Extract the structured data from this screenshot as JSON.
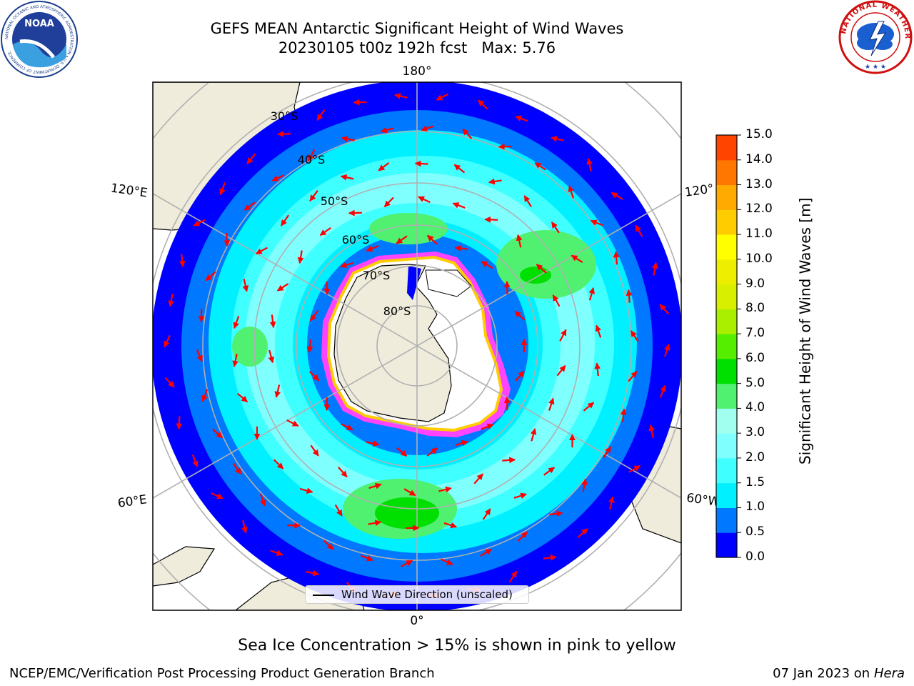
{
  "header": {
    "title_line1": "GEFS MEAN Antarctic Significant Height of Wind Waves",
    "title_line2": "20230105 t00z 192h fcst   Max: 5.76"
  },
  "logos": {
    "left": "NOAA",
    "left_ring_text": "NATIONAL OCEANIC AND ATMOSPHERIC ADMINISTRATION • U.S. DEPARTMENT OF COMMERCE",
    "right_ring_text": "NATIONAL WEATHER SERVICE"
  },
  "map": {
    "projection": "south-polar-stereographic",
    "longitude_labels": [
      "180°",
      "120°E",
      "120°",
      "60°E",
      "60°W",
      "0°"
    ],
    "latitude_labels": [
      "30°S",
      "40°S",
      "50°S",
      "60°S",
      "70°S",
      "80°S"
    ],
    "legend_label": "Wind Wave Direction (unscaled)",
    "colors": {
      "land": "#efecdc",
      "open_ocean": "#0000ff",
      "sea_ice": "#ff44ff",
      "arrows": "#ff0000",
      "grid": "#b0b0b0"
    }
  },
  "colorbar": {
    "title": "Significant Height of Wind Waves [m]",
    "levels": [
      "0.0",
      "0.5",
      "1.0",
      "1.5",
      "2.0",
      "3.0",
      "4.0",
      "5.0",
      "6.0",
      "7.0",
      "8.0",
      "9.0",
      "10.0",
      "11.0",
      "12.0",
      "13.0",
      "14.0",
      "15.0"
    ],
    "colors": [
      "#0000ff",
      "#0078ff",
      "#00f0ff",
      "#40ffff",
      "#80ffff",
      "#a0ffee",
      "#50f070",
      "#00e000",
      "#55ee00",
      "#aaee00",
      "#d8f000",
      "#eeee00",
      "#ffff00",
      "#ffcc00",
      "#ffaa00",
      "#ff7700",
      "#ff4400",
      "#ff0000"
    ]
  },
  "note": "Sea Ice Concentration > 15% is shown in pink to yellow",
  "footer": {
    "left": "NCEP/EMC/Verification Post Processing Product Generation Branch",
    "date": "07 Jan 2023 on",
    "machine": "Hera"
  }
}
